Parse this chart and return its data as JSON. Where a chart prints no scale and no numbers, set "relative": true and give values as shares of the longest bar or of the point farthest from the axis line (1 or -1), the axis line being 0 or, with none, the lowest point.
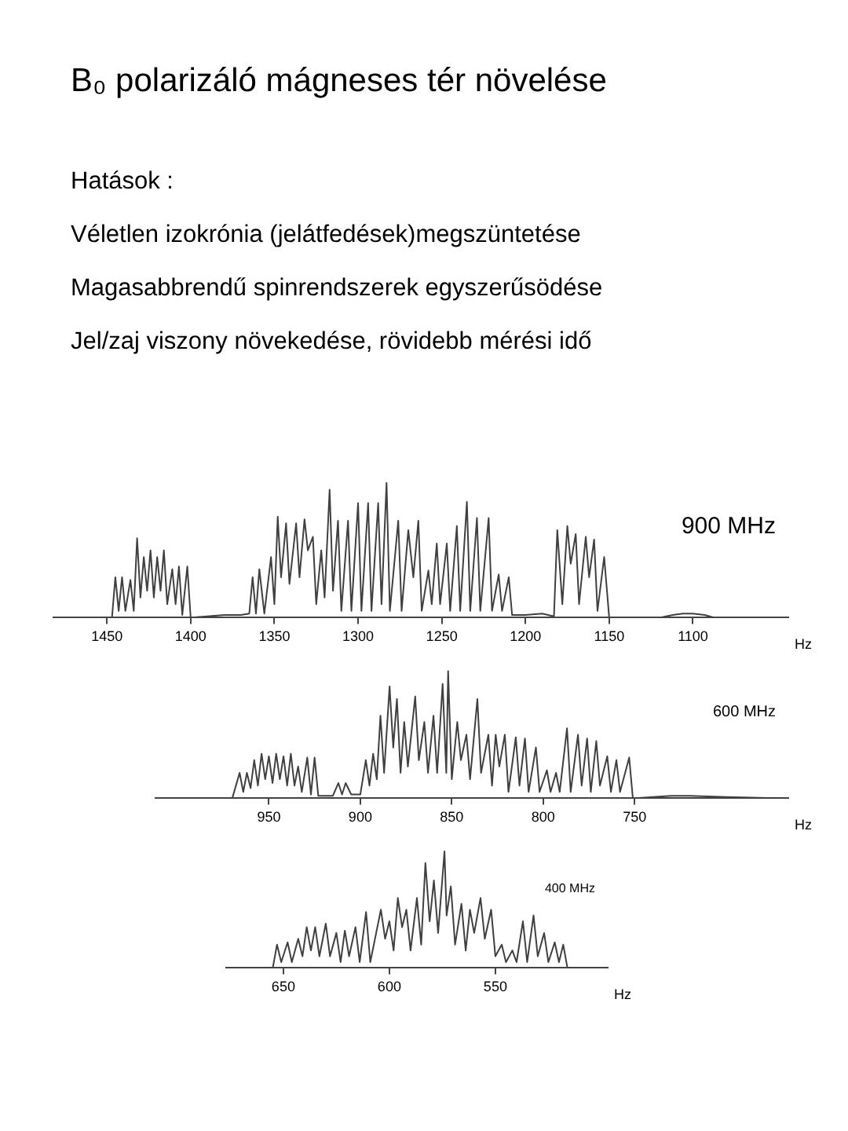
{
  "chart_data": [
    {
      "type": "other",
      "title": "B₀ polarizáló mágneses tér növelése",
      "annotations": [
        "Hatások :",
        "Véletlen izokrónia (jelátfedések)megszüntetése",
        "Magasabbrendű spinrendszerek egyszerűsödése",
        "Jel/zaj viszony növekedése, rövidebb mérési idő"
      ]
    },
    {
      "type": "line",
      "relative": true,
      "xlabel": "Hz",
      "xlim": [
        1482,
        1043
      ],
      "xticks": [
        1450,
        1400,
        1350,
        1300,
        1250,
        1200,
        1150,
        1100
      ],
      "legend": false,
      "grid": false,
      "series": [
        {
          "name": "900 MHz",
          "color": "#404040",
          "x": [
            1447,
            1445,
            1443,
            1441,
            1439,
            1436,
            1434,
            1432,
            1430,
            1428,
            1426,
            1424,
            1422,
            1420,
            1418,
            1416,
            1414,
            1411,
            1409,
            1407,
            1405,
            1402,
            1400,
            1390,
            1380,
            1370,
            1365,
            1363,
            1361,
            1359,
            1356,
            1352,
            1350,
            1348,
            1346,
            1343,
            1341,
            1337,
            1335,
            1332,
            1330,
            1327,
            1325,
            1322,
            1320,
            1317,
            1315,
            1312,
            1310,
            1306,
            1304,
            1300,
            1298,
            1294,
            1292,
            1288,
            1286,
            1283,
            1281,
            1276,
            1274,
            1270,
            1267,
            1264,
            1262,
            1258,
            1256,
            1253,
            1251,
            1247,
            1245,
            1241,
            1239,
            1235,
            1233,
            1229,
            1227,
            1222,
            1220,
            1216,
            1214,
            1210,
            1208,
            1200,
            1190,
            1183,
            1181,
            1178,
            1175,
            1173,
            1170,
            1168,
            1164,
            1162,
            1159,
            1157,
            1153,
            1150,
            1140,
            1120,
            1112,
            1106,
            1100,
            1093,
            1087
          ],
          "values": [
            0,
            0.3,
            0.05,
            0.3,
            0.05,
            0.28,
            0.05,
            0.59,
            0.15,
            0.45,
            0.2,
            0.5,
            0.15,
            0.45,
            0.2,
            0.5,
            0.1,
            0.36,
            0.1,
            0.38,
            0.02,
            0.38,
            0,
            0.01,
            0.02,
            0.02,
            0.03,
            0.3,
            0.03,
            0.36,
            0.03,
            0.45,
            0.1,
            0.75,
            0.3,
            0.7,
            0.25,
            0.7,
            0.3,
            0.73,
            0.5,
            0.6,
            0.1,
            0.5,
            0.15,
            0.95,
            0.2,
            0.72,
            0.05,
            0.72,
            0.05,
            0.85,
            0.05,
            0.85,
            0.05,
            0.85,
            0.1,
            1,
            0.05,
            0.72,
            0.05,
            0.65,
            0.3,
            0.72,
            0.05,
            0.35,
            0.1,
            0.55,
            0.1,
            0.55,
            0.05,
            0.68,
            0.05,
            0.86,
            0.05,
            0.74,
            0.05,
            0.74,
            0.05,
            0.32,
            0.05,
            0.3,
            0.02,
            0.02,
            0.03,
            0.01,
            0.65,
            0.1,
            0.68,
            0.4,
            0.62,
            0.1,
            0.6,
            0.3,
            0.58,
            0.05,
            0.45,
            0,
            0,
            0,
            0.02,
            0.03,
            0.03,
            0.02,
            0
          ]
        }
      ]
    },
    {
      "type": "line",
      "relative": true,
      "xlabel": "Hz",
      "xlim": [
        1012,
        666
      ],
      "xticks": [
        950,
        900,
        850,
        800,
        750
      ],
      "legend": false,
      "grid": false,
      "series": [
        {
          "name": "600 MHz",
          "color": "#404040",
          "x": [
            1010,
            970,
            966,
            964,
            962,
            960,
            958,
            956,
            954,
            952,
            950,
            948,
            946,
            944,
            942,
            940,
            938,
            936,
            934,
            932,
            929,
            927,
            925,
            923,
            915,
            912,
            910,
            908,
            905,
            900,
            897,
            895,
            893,
            891,
            889,
            887,
            884,
            882,
            880,
            878,
            876,
            874,
            870,
            868,
            865,
            863,
            860,
            858,
            855,
            853,
            852,
            850,
            847,
            845,
            842,
            840,
            836,
            834,
            830,
            828,
            826,
            824,
            821,
            819,
            815,
            813,
            810,
            808,
            804,
            802,
            798,
            796,
            793,
            791,
            787,
            785,
            781,
            779,
            776,
            774,
            771,
            769,
            765,
            763,
            760,
            758,
            753,
            751,
            740,
            730,
            720,
            700,
            668
          ],
          "values": [
            0,
            0,
            0.2,
            0.05,
            0.2,
            0.08,
            0.3,
            0.1,
            0.35,
            0.15,
            0.33,
            0.12,
            0.35,
            0.15,
            0.33,
            0.1,
            0.35,
            0.1,
            0.25,
            0.05,
            0.32,
            0.03,
            0.32,
            0.02,
            0.02,
            0.12,
            0.03,
            0.12,
            0.03,
            0.03,
            0.3,
            0.1,
            0.35,
            0.15,
            0.65,
            0.2,
            0.88,
            0.4,
            0.78,
            0.2,
            0.6,
            0.25,
            0.8,
            0.3,
            0.6,
            0.2,
            0.65,
            0.2,
            0.9,
            0.2,
            1,
            0.15,
            0.6,
            0.3,
            0.5,
            0.15,
            0.78,
            0.2,
            0.5,
            0.1,
            0.5,
            0.25,
            0.5,
            0.05,
            0.48,
            0.1,
            0.47,
            0.05,
            0.4,
            0.05,
            0.22,
            0.05,
            0.2,
            0.05,
            0.55,
            0.05,
            0.5,
            0.1,
            0.47,
            0.05,
            0.45,
            0.1,
            0.33,
            0.05,
            0.3,
            0.05,
            0.32,
            0,
            0.01,
            0.02,
            0.02,
            0.01,
            0
          ]
        }
      ]
    },
    {
      "type": "line",
      "relative": true,
      "xlabel": "Hz",
      "xlim": [
        677,
        497
      ],
      "xticks": [
        650,
        600,
        550
      ],
      "legend": false,
      "grid": false,
      "series": [
        {
          "name": "400 MHz",
          "color": "#404040",
          "x": [
            677,
            655,
            653,
            651,
            648,
            646,
            643,
            641,
            639,
            637,
            635,
            633,
            630,
            628,
            625,
            623,
            621,
            619,
            616,
            614,
            611,
            609,
            604,
            602,
            600,
            598,
            596,
            594,
            592,
            590,
            587,
            585,
            583,
            581,
            579,
            577,
            574,
            573,
            571,
            569,
            566,
            564,
            562,
            560,
            557,
            555,
            552,
            550,
            547,
            545,
            542,
            540,
            537,
            535,
            532,
            530,
            527,
            525,
            522,
            520,
            518,
            516,
            497
          ],
          "values": [
            0,
            0,
            0.2,
            0.05,
            0.22,
            0.05,
            0.25,
            0.1,
            0.35,
            0.15,
            0.35,
            0.1,
            0.38,
            0.1,
            0.3,
            0.05,
            0.32,
            0.1,
            0.35,
            0.05,
            0.48,
            0.05,
            0.5,
            0.25,
            0.4,
            0.15,
            0.6,
            0.35,
            0.5,
            0.15,
            0.6,
            0.2,
            0.9,
            0.4,
            0.75,
            0.3,
            1,
            0.45,
            0.7,
            0.2,
            0.55,
            0.15,
            0.5,
            0.3,
            0.6,
            0.25,
            0.5,
            0.1,
            0.2,
            0.05,
            0.15,
            0.05,
            0.4,
            0.05,
            0.45,
            0.1,
            0.3,
            0.05,
            0.22,
            0.05,
            0.2,
            0,
            0
          ]
        }
      ]
    }
  ]
}
